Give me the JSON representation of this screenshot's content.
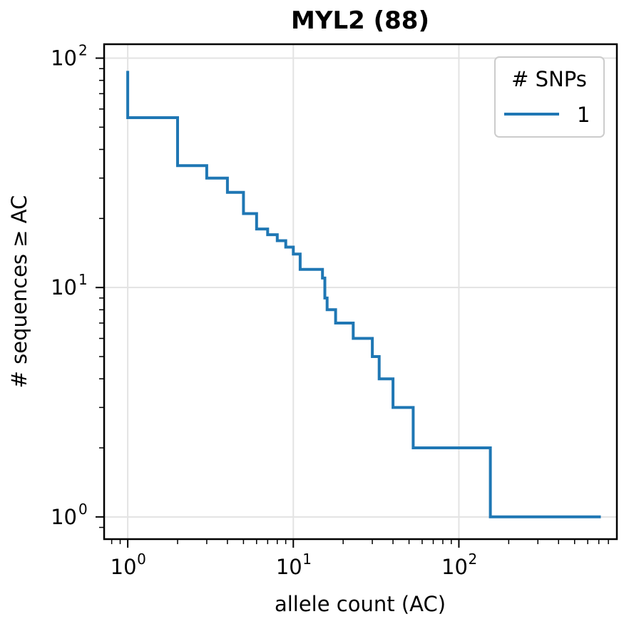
{
  "chart_data": {
    "type": "line",
    "title": "MYL2 (88)",
    "xlabel": "allele count (AC)",
    "ylabel": "# sequences ≥ AC",
    "xscale": "log",
    "yscale": "log",
    "xlim": [
      0.72,
      900
    ],
    "ylim": [
      0.8,
      115
    ],
    "grid": true,
    "x_ticks": [
      {
        "base": "10",
        "exp": "0",
        "value": 1
      },
      {
        "base": "10",
        "exp": "1",
        "value": 10
      },
      {
        "base": "10",
        "exp": "2",
        "value": 100
      }
    ],
    "y_ticks": [
      {
        "base": "10",
        "exp": "0",
        "value": 1
      },
      {
        "base": "10",
        "exp": "1",
        "value": 10
      },
      {
        "base": "10",
        "exp": "2",
        "value": 100
      }
    ],
    "legend": {
      "title": "# SNPs",
      "position": "top-right"
    },
    "series": [
      {
        "name": "1",
        "color": "#1f77b4",
        "step": "post",
        "x": [
          1,
          1,
          2,
          3,
          4,
          5,
          6,
          7,
          8,
          9,
          10,
          11,
          15,
          15.5,
          16,
          18,
          23,
          30,
          33,
          40,
          53,
          155,
          720
        ],
        "y": [
          88,
          55,
          34,
          30,
          26,
          21,
          18,
          17,
          16,
          15,
          14,
          12,
          11,
          9,
          8,
          7,
          6,
          5,
          4,
          3,
          2,
          1,
          1
        ]
      }
    ]
  }
}
